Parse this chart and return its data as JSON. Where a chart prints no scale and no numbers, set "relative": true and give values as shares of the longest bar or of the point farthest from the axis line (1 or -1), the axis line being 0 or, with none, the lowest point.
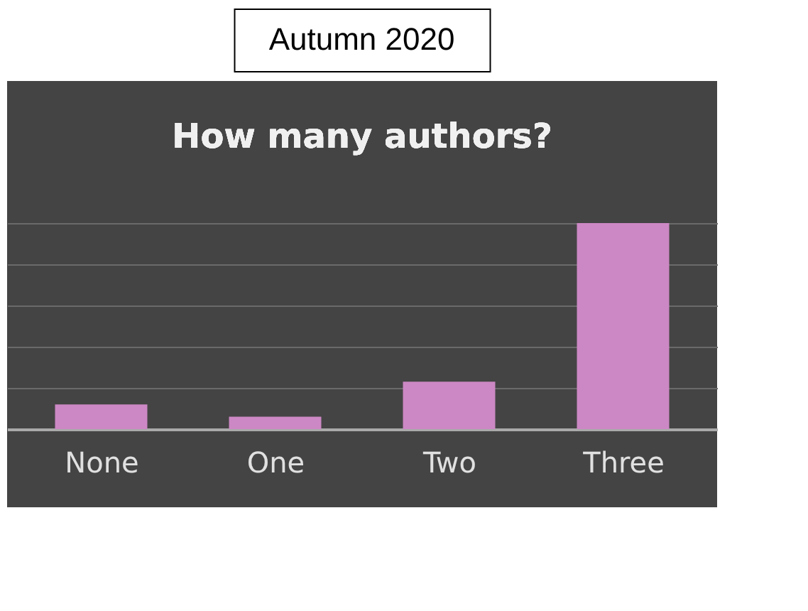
{
  "chart_data": {
    "type": "bar",
    "title": "Autumn 2020",
    "subtitle": "How many authors?",
    "categories": [
      "None",
      "One",
      "Two",
      "Three"
    ],
    "values": [
      0.12,
      0.06,
      0.23,
      1.0
    ],
    "color": "#cc88c4",
    "relative": true,
    "grid": "y"
  }
}
